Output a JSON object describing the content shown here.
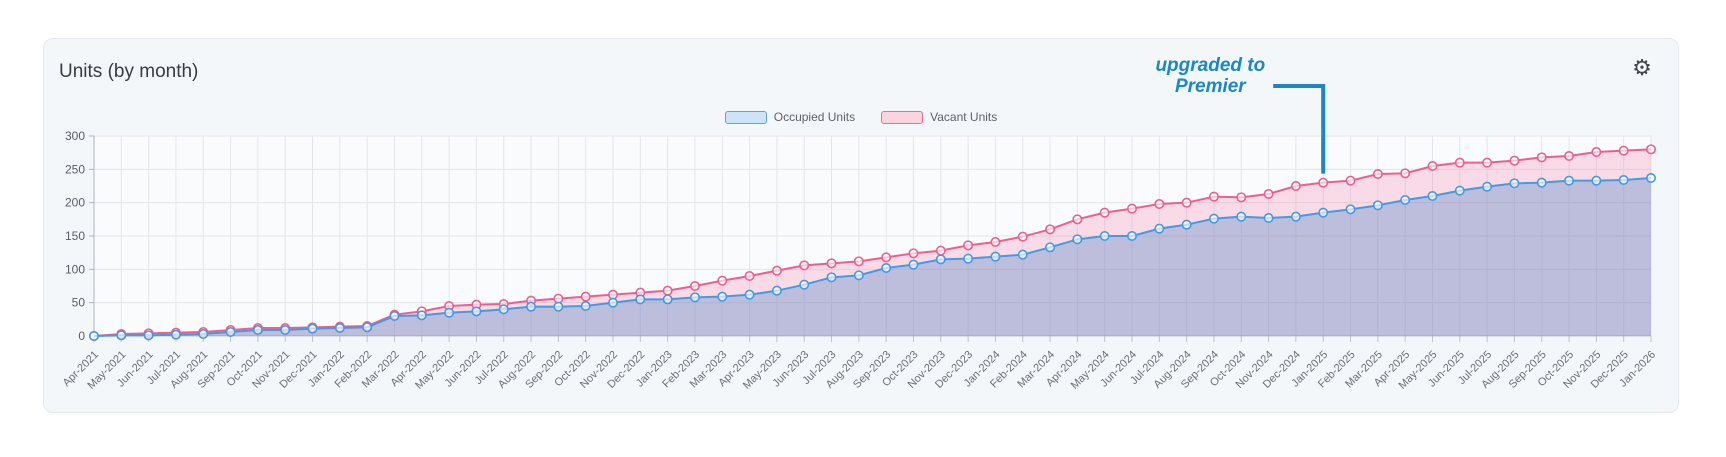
{
  "card": {
    "title": "Units (by month)"
  },
  "icons": {
    "settings": "⚙"
  },
  "chart_data": {
    "type": "area",
    "title": "Units (by month)",
    "categories": [
      "Apr-2021",
      "May-2021",
      "Jun-2021",
      "Jul-2021",
      "Aug-2021",
      "Sep-2021",
      "Oct-2021",
      "Nov-2021",
      "Dec-2021",
      "Jan-2022",
      "Feb-2022",
      "Mar-2022",
      "Apr-2022",
      "May-2022",
      "Jun-2022",
      "Jul-2022",
      "Aug-2022",
      "Sep-2022",
      "Oct-2022",
      "Nov-2022",
      "Dec-2022",
      "Jan-2023",
      "Feb-2023",
      "Mar-2023",
      "Apr-2023",
      "May-2023",
      "Jun-2023",
      "Jul-2023",
      "Aug-2023",
      "Sep-2023",
      "Oct-2023",
      "Nov-2023",
      "Dec-2023",
      "Jan-2024",
      "Feb-2024",
      "Mar-2024",
      "Apr-2024",
      "May-2024",
      "Jun-2024",
      "Jul-2024",
      "Aug-2024",
      "Sep-2024",
      "Oct-2024",
      "Nov-2024",
      "Dec-2024",
      "Jan-2025",
      "Feb-2025",
      "Mar-2025",
      "Apr-2025",
      "May-2025",
      "Jun-2025",
      "Jul-2025",
      "Aug-2025",
      "Sep-2025",
      "Oct-2025",
      "Nov-2025",
      "Dec-2025",
      "Jan-2026"
    ],
    "series": [
      {
        "name": "Occupied Units",
        "color": "#459ae0",
        "fill": "rgba(69,130,200,0.33)",
        "legend_fill": "#cce4f7",
        "legend_stroke": "#5da3dc",
        "values": [
          0,
          1,
          1,
          2,
          3,
          6,
          9,
          9,
          11,
          12,
          13,
          30,
          31,
          35,
          37,
          40,
          44,
          44,
          45,
          50,
          55,
          55,
          58,
          59,
          62,
          68,
          77,
          88,
          91,
          102,
          107,
          115,
          116,
          119,
          122,
          133,
          145,
          150,
          150,
          161,
          167,
          176,
          179,
          177,
          179,
          185,
          190,
          196,
          204,
          210,
          218,
          224,
          229,
          230,
          233,
          233,
          234,
          237
        ]
      },
      {
        "name": "Vacant Units",
        "color": "#ee5f8d",
        "fill": "rgba(238,95,141,0.20)",
        "legend_fill": "#fad4df",
        "legend_stroke": "#ef6d94",
        "values": [
          0,
          3,
          4,
          5,
          6,
          9,
          12,
          12,
          13,
          14,
          15,
          32,
          37,
          45,
          47,
          48,
          53,
          56,
          59,
          62,
          65,
          68,
          75,
          83,
          90,
          98,
          106,
          109,
          112,
          118,
          124,
          128,
          136,
          141,
          149,
          160,
          175,
          185,
          191,
          198,
          200,
          209,
          208,
          213,
          225,
          230,
          233,
          243,
          244,
          255,
          260,
          260,
          263,
          268,
          270,
          276,
          278,
          280
        ]
      }
    ],
    "ylim": [
      0,
      300
    ],
    "yticks": [
      0,
      50,
      100,
      150,
      200,
      250,
      300
    ],
    "grid": true,
    "legend_position": "top-center",
    "annotation": {
      "line1": "upgraded to",
      "line2": "Premier",
      "target": "Jan-2025",
      "color": "#1a87c9"
    }
  }
}
